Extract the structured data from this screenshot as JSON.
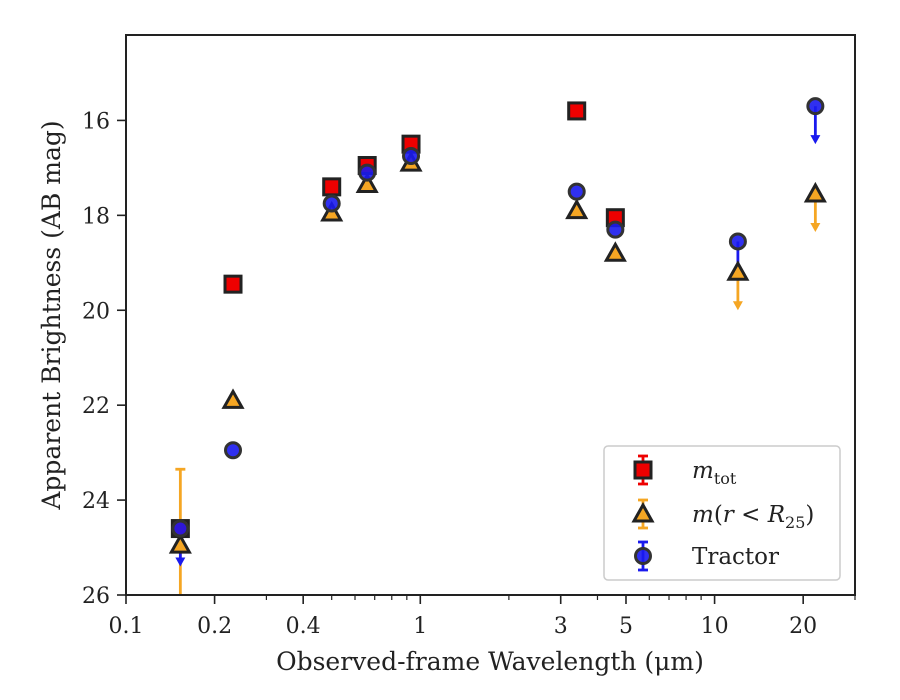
{
  "chart_data": {
    "type": "scatter",
    "xlabel": "Observed-frame Wavelength (μm)",
    "ylabel": "Apparent Brightness (AB mag)",
    "x_scale": "log",
    "xlim": [
      0.1,
      30
    ],
    "ylim": [
      26,
      14.2
    ],
    "y_inverted": true,
    "x_ticks": [
      0.1,
      0.2,
      0.4,
      1,
      3,
      5,
      10,
      20
    ],
    "x_tick_labels": [
      "0.1",
      "0.2",
      "0.4",
      "1",
      "3",
      "5",
      "10",
      "20"
    ],
    "y_ticks": [
      16,
      18,
      20,
      22,
      24,
      26
    ],
    "y_tick_labels": [
      "16",
      "18",
      "20",
      "22",
      "24",
      "26"
    ],
    "grid": false,
    "legend_position": "lower-right",
    "series": [
      {
        "name": "m_tot",
        "marker": "square",
        "color": "#ee0000",
        "points": [
          {
            "x": 0.153,
            "y": 24.6
          },
          {
            "x": 0.231,
            "y": 19.45
          },
          {
            "x": 0.5,
            "y": 17.4
          },
          {
            "x": 0.66,
            "y": 16.95
          },
          {
            "x": 0.93,
            "y": 16.5
          },
          {
            "x": 3.4,
            "y": 15.8
          },
          {
            "x": 4.6,
            "y": 18.05
          }
        ]
      },
      {
        "name": "m(r < R25)",
        "marker": "triangle",
        "color": "#f5a623",
        "points": [
          {
            "x": 0.153,
            "y": 24.95,
            "err_low": 1.6,
            "err_high": 1.6
          },
          {
            "x": 0.231,
            "y": 21.9
          },
          {
            "x": 0.5,
            "y": 17.95
          },
          {
            "x": 0.66,
            "y": 17.35
          },
          {
            "x": 0.93,
            "y": 16.9
          },
          {
            "x": 3.4,
            "y": 17.9
          },
          {
            "x": 4.6,
            "y": 18.8
          },
          {
            "x": 12.0,
            "y": 19.2,
            "upper_limit": true
          },
          {
            "x": 22.0,
            "y": 17.55,
            "upper_limit": true
          }
        ]
      },
      {
        "name": "Tractor",
        "marker": "circle",
        "color": "#1a1aee",
        "points": [
          {
            "x": 0.153,
            "y": 24.6,
            "upper_limit": true
          },
          {
            "x": 0.231,
            "y": 22.95
          },
          {
            "x": 0.5,
            "y": 17.75
          },
          {
            "x": 0.66,
            "y": 17.1
          },
          {
            "x": 0.93,
            "y": 16.75
          },
          {
            "x": 3.4,
            "y": 17.5
          },
          {
            "x": 4.6,
            "y": 18.3
          },
          {
            "x": 12.0,
            "y": 18.55,
            "upper_limit": true
          },
          {
            "x": 22.0,
            "y": 15.7,
            "upper_limit": true
          }
        ]
      }
    ]
  }
}
